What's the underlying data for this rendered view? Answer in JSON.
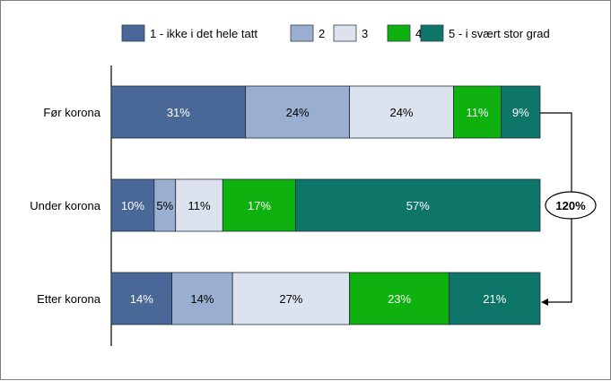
{
  "chart_data": {
    "type": "bar",
    "orientation": "horizontal",
    "stacked": true,
    "normalized": true,
    "title": "",
    "xlabel": "",
    "ylabel": "",
    "categories": [
      "Før korona",
      "Under korona",
      "Etter korona"
    ],
    "series": [
      {
        "name": "1 - ikke i det hele tatt",
        "values": [
          31,
          10,
          14
        ],
        "color": "#4a6897",
        "label_color": "#ffffff"
      },
      {
        "name": "2",
        "values": [
          24,
          5,
          14
        ],
        "color": "#9aaed0",
        "label_color": "#000000"
      },
      {
        "name": "3",
        "values": [
          24,
          11,
          27
        ],
        "color": "#dde3ee",
        "label_color": "#000000"
      },
      {
        "name": "4",
        "values": [
          11,
          17,
          23
        ],
        "color": "#0fb10f",
        "label_color": "#ffffff"
      },
      {
        "name": "5 - i svært stor grad",
        "values": [
          9,
          57,
          21
        ],
        "color": "#0d7669",
        "label_color": "#ffffff"
      }
    ],
    "value_suffix": "%",
    "legend_position": "top",
    "grid": false,
    "annotation": {
      "text": "120%",
      "from": "Før korona",
      "to": "Etter korona",
      "style": "bracket-arrow"
    }
  }
}
